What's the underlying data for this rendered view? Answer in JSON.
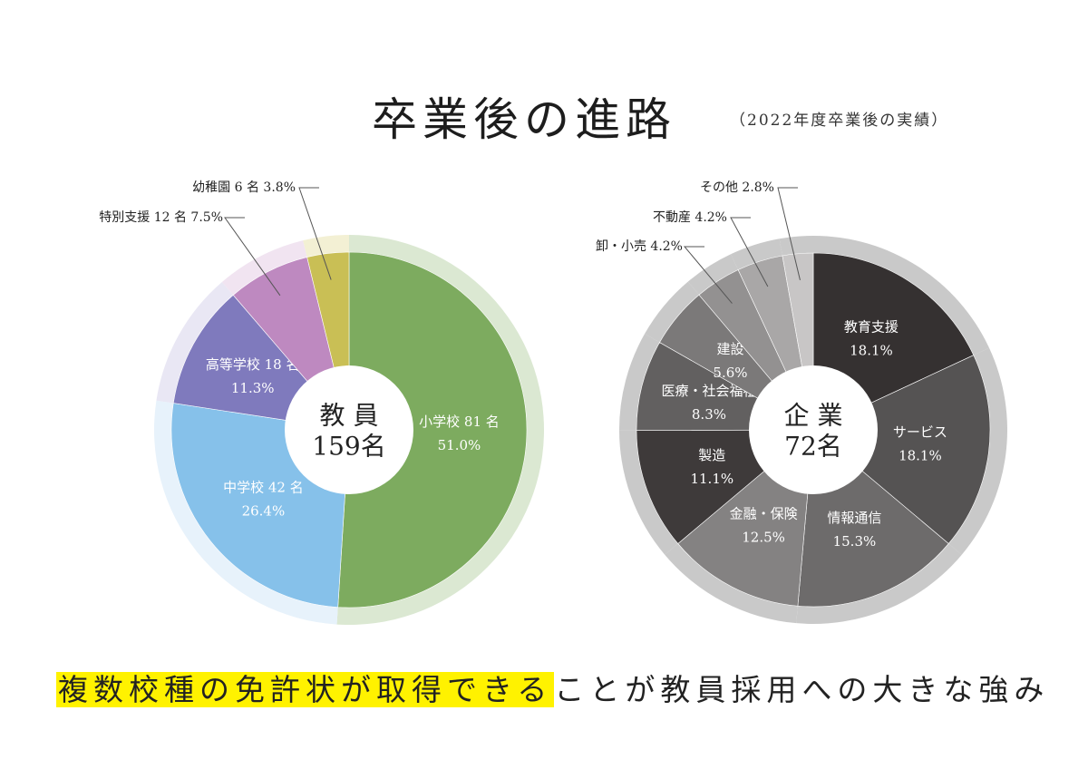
{
  "header": {
    "title": "卒業後の進路",
    "subtitle": "（2022年度卒業後の実績）"
  },
  "chart_data": [
    {
      "type": "pie",
      "center_label": [
        "教 員",
        "159名"
      ],
      "slices": [
        {
          "name": "小学校",
          "count": 81,
          "percent": 51.0,
          "color": "#7dab5f",
          "ring_color": "#dbe8d2",
          "label": "小学校 81 名",
          "value_label": "51.0%"
        },
        {
          "name": "中学校",
          "count": 42,
          "percent": 26.4,
          "color": "#86c1ea",
          "ring_color": "#e7f2fb",
          "label": "中学校 42 名",
          "value_label": "26.4%"
        },
        {
          "name": "高等学校",
          "count": 18,
          "percent": 11.3,
          "color": "#7f7abd",
          "ring_color": "#e9e7f4",
          "label": "高等学校 18 名",
          "value_label": "11.3%"
        },
        {
          "name": "特別支援",
          "count": 12,
          "percent": 7.5,
          "color": "#be89c0",
          "ring_color": "#f1e4f1",
          "label": "特別支援 12 名 7.5%",
          "value_label": ""
        },
        {
          "name": "幼稚園",
          "count": 6,
          "percent": 3.8,
          "color": "#c9bf55",
          "ring_color": "#f3f0d4",
          "label": "幼稚園 6 名 3.8%",
          "value_label": ""
        }
      ]
    },
    {
      "type": "pie",
      "center_label": [
        "企 業",
        "72名"
      ],
      "slices": [
        {
          "name": "教育支援",
          "percent": 18.1,
          "color": "#353131",
          "label": "教育支援",
          "value_label": "18.1%"
        },
        {
          "name": "サービス",
          "percent": 18.1,
          "color": "#555353",
          "label": "サービス",
          "value_label": "18.1%"
        },
        {
          "name": "情報通信",
          "percent": 15.3,
          "color": "#6d6b6b",
          "label": "情報通信",
          "value_label": "15.3%"
        },
        {
          "name": "金融・保険",
          "percent": 12.5,
          "color": "#848282",
          "label": "金融・保険",
          "value_label": "12.5%"
        },
        {
          "name": "製造",
          "percent": 11.1,
          "color": "#3e3a3a",
          "label": "製造",
          "value_label": "11.1%"
        },
        {
          "name": "医療・社会福祉",
          "percent": 8.3,
          "color": "#626060",
          "label": "医療・社会福祉",
          "value_label": "8.3%"
        },
        {
          "name": "建設",
          "percent": 5.6,
          "color": "#7b7979",
          "label": "建設",
          "value_label": "5.6%"
        },
        {
          "name": "卸・小売",
          "percent": 4.2,
          "color": "#939191",
          "label": "卸・小売 4.2%",
          "value_label": ""
        },
        {
          "name": "不動産",
          "percent": 4.2,
          "color": "#a9a7a7",
          "label": "不動産 4.2%",
          "value_label": ""
        },
        {
          "name": "その他",
          "percent": 2.8,
          "color": "#c8c6c6",
          "label": "その他 2.8%",
          "value_label": ""
        }
      ],
      "ring_color": "#c9c9c9"
    }
  ],
  "footer": {
    "highlighted": "複数校種の免許状が取得できる",
    "rest": "ことが教員採用への大きな強み",
    "highlight_color": "#fff200"
  }
}
